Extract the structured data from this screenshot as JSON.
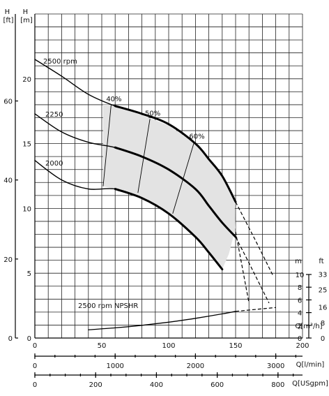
{
  "chart_data": {
    "type": "line",
    "title": "",
    "x_axes": [
      {
        "label": "Q[m³/h]",
        "ticks": [
          "0",
          "50",
          "100",
          "150",
          "200"
        ],
        "range": [
          0,
          200
        ]
      },
      {
        "label": "Q[l/min]",
        "ticks": [
          "0",
          "1000",
          "2000",
          "3000"
        ],
        "range": [
          0,
          3333.3
        ]
      },
      {
        "label": "Q[USgpm]",
        "ticks": [
          "0",
          "200",
          "400",
          "600",
          "800"
        ],
        "range": [
          0,
          880.6
        ]
      }
    ],
    "y_axes": {
      "head_ft": {
        "label": "H\n[ft]",
        "ticks": [
          "0",
          "20",
          "40",
          "60"
        ]
      },
      "head_m": {
        "label": "H\n[m]",
        "ticks": [
          "0",
          "5",
          "10",
          "15",
          "20"
        ],
        "range": [
          0,
          25
        ]
      },
      "npshr_m": {
        "label": "m",
        "ticks": [
          "0",
          "2",
          "4",
          "6",
          "8",
          "10"
        ],
        "range": [
          0,
          10
        ]
      },
      "npshr_ft": {
        "label": "ft",
        "ticks": [
          "0",
          "8",
          "16",
          "25",
          "33"
        ]
      }
    },
    "series": [
      {
        "name": "2500 rpm",
        "x": [
          0,
          20,
          40,
          60,
          80,
          100,
          120,
          130,
          140,
          150
        ],
        "y": [
          21.5,
          20.2,
          18.8,
          17.9,
          17.3,
          16.5,
          15.0,
          13.8,
          12.5,
          10.5
        ]
      },
      {
        "name": "2250",
        "x": [
          0,
          20,
          40,
          60,
          80,
          100,
          120,
          130,
          140,
          150
        ],
        "y": [
          17.3,
          15.9,
          15.1,
          14.7,
          14.0,
          13.0,
          11.5,
          10.2,
          8.9,
          7.8
        ]
      },
      {
        "name": "2000",
        "x": [
          0,
          20,
          40,
          60,
          80,
          100,
          120,
          130,
          140
        ],
        "y": [
          13.7,
          12.2,
          11.5,
          11.5,
          10.8,
          9.6,
          7.8,
          6.6,
          5.3
        ]
      },
      {
        "name": "2500 rpm NPSHR",
        "x": [
          40,
          60,
          80,
          100,
          120,
          140,
          150
        ],
        "y": [
          1.3,
          1.6,
          2.0,
          2.5,
          3.1,
          3.8,
          4.2
        ]
      }
    ],
    "extensions": [
      {
        "x": [
          150,
          165,
          178
        ],
        "y": [
          10.5,
          7.5,
          4.8
        ]
      },
      {
        "x": [
          150,
          160,
          175
        ],
        "y": [
          7.8,
          5.8,
          2.7
        ]
      },
      {
        "x": [
          150,
          180
        ],
        "y": [
          4.2,
          4.8
        ]
      }
    ],
    "efficiency_lines": [
      {
        "label": "40%",
        "x": [
          51,
          57
        ],
        "y": [
          11.7,
          18.0
        ]
      },
      {
        "label": "50%",
        "x": [
          77,
          86
        ],
        "y": [
          11.2,
          16.9
        ]
      },
      {
        "label": "60%",
        "x": [
          103,
          119
        ],
        "y": [
          9.6,
          15.1
        ]
      }
    ],
    "efficiency_region": [
      [
        51,
        11.7
      ],
      [
        51,
        18.0
      ],
      [
        57,
        18.0
      ],
      [
        80,
        17.2
      ],
      [
        100,
        16.4
      ],
      [
        120,
        15.0
      ],
      [
        140,
        12.5
      ],
      [
        149,
        11.0
      ],
      [
        150,
        8.5
      ],
      [
        145,
        6.5
      ],
      [
        140,
        5.3
      ],
      [
        120,
        7.8
      ],
      [
        100,
        9.6
      ],
      [
        80,
        10.8
      ],
      [
        60,
        11.5
      ]
    ],
    "grid": true
  }
}
